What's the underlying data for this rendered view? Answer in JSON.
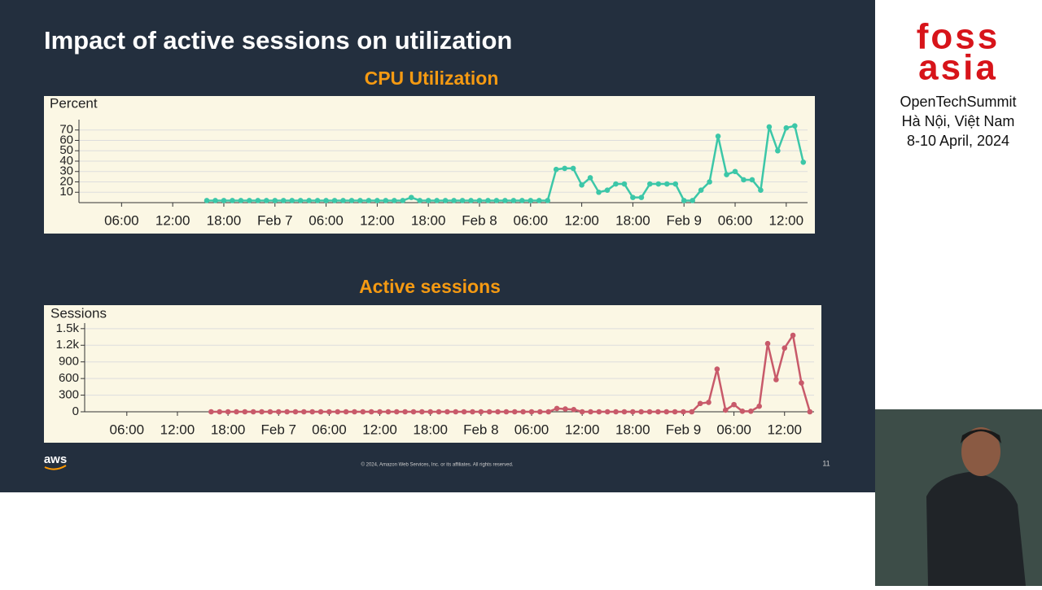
{
  "slide": {
    "title": "Impact of active sessions on utilization",
    "logo": "aws",
    "footer": "© 2024, Amazon Web Services, Inc. or its affiliates. All rights reserved.",
    "page_number": "11"
  },
  "sidebar": {
    "logo_top": "foss",
    "logo_bottom": "asia",
    "lines": [
      "OpenTechSummit",
      "Hà Nội, Việt Nam",
      "8-10 April, 2024"
    ]
  },
  "chart_data": [
    {
      "type": "line",
      "title": "CPU Utilization",
      "y_label": "Percent",
      "color": "#3cc7a8",
      "grid": true,
      "xlim": [
        1,
        86.5
      ],
      "ylim": [
        0,
        80
      ],
      "yticks": [
        10,
        20,
        30,
        40,
        50,
        60,
        70
      ],
      "xticks": [
        {
          "value": 6,
          "label": "06:00"
        },
        {
          "value": 12,
          "label": "12:00"
        },
        {
          "value": 18,
          "label": "18:00"
        },
        {
          "value": 24,
          "label": "Feb 7"
        },
        {
          "value": 30,
          "label": "06:00"
        },
        {
          "value": 36,
          "label": "12:00"
        },
        {
          "value": 42,
          "label": "18:00"
        },
        {
          "value": 48,
          "label": "Feb 8"
        },
        {
          "value": 54,
          "label": "06:00"
        },
        {
          "value": 60,
          "label": "12:00"
        },
        {
          "value": 66,
          "label": "18:00"
        },
        {
          "value": 72,
          "label": "Feb 9"
        },
        {
          "value": 78,
          "label": "06:00"
        },
        {
          "value": 84,
          "label": "12:00"
        }
      ],
      "x": [
        16,
        17,
        18,
        19,
        20,
        21,
        22,
        23,
        24,
        25,
        26,
        27,
        28,
        29,
        30,
        31,
        32,
        33,
        34,
        35,
        36,
        37,
        38,
        39,
        40,
        41,
        42,
        43,
        44,
        45,
        46,
        47,
        48,
        49,
        50,
        51,
        52,
        53,
        54,
        55,
        56,
        57,
        58,
        59,
        60,
        61,
        62,
        63,
        64,
        65,
        66,
        67,
        68,
        69,
        70,
        71,
        72,
        73,
        74,
        75,
        76,
        77,
        78,
        79,
        80,
        81,
        82,
        83,
        84,
        85,
        86
      ],
      "values": [
        2,
        2,
        2,
        2,
        2,
        2,
        2,
        2,
        2,
        2,
        2,
        2,
        2,
        2,
        2,
        2,
        2,
        2,
        2,
        2,
        2,
        2,
        2,
        2,
        5,
        2,
        2,
        2,
        2,
        2,
        2,
        2,
        2,
        2,
        2,
        2,
        2,
        2,
        2,
        2,
        2,
        32,
        33,
        33,
        17,
        24,
        10,
        12,
        18,
        18,
        5,
        5,
        18,
        18,
        18,
        18,
        2,
        2,
        12,
        20,
        64,
        27,
        30,
        22,
        22,
        12,
        73,
        50,
        72,
        74,
        39
      ]
    },
    {
      "type": "line",
      "title": "Active sessions",
      "y_label": "Sessions",
      "color": "#c85a6a",
      "grid": true,
      "xlim": [
        1,
        87.5
      ],
      "ylim": [
        0,
        1600
      ],
      "yticks": [
        0,
        300,
        600,
        900,
        {
          "value": 1200,
          "label": "1.2k"
        },
        {
          "value": 1500,
          "label": "1.5k"
        }
      ],
      "xticks": [
        {
          "value": 6,
          "label": "06:00"
        },
        {
          "value": 12,
          "label": "12:00"
        },
        {
          "value": 18,
          "label": "18:00"
        },
        {
          "value": 24,
          "label": "Feb 7"
        },
        {
          "value": 30,
          "label": "06:00"
        },
        {
          "value": 36,
          "label": "12:00"
        },
        {
          "value": 42,
          "label": "18:00"
        },
        {
          "value": 48,
          "label": "Feb 8"
        },
        {
          "value": 54,
          "label": "06:00"
        },
        {
          "value": 60,
          "label": "12:00"
        },
        {
          "value": 66,
          "label": "18:00"
        },
        {
          "value": 72,
          "label": "Feb 9"
        },
        {
          "value": 78,
          "label": "06:00"
        },
        {
          "value": 84,
          "label": "12:00"
        }
      ],
      "x": [
        16,
        17,
        18,
        19,
        20,
        21,
        22,
        23,
        24,
        25,
        26,
        27,
        28,
        29,
        30,
        31,
        32,
        33,
        34,
        35,
        36,
        37,
        38,
        39,
        40,
        41,
        42,
        43,
        44,
        45,
        46,
        47,
        48,
        49,
        50,
        51,
        52,
        53,
        54,
        55,
        56,
        57,
        58,
        59,
        60,
        61,
        62,
        63,
        64,
        65,
        66,
        67,
        68,
        69,
        70,
        71,
        72,
        73,
        74,
        75,
        76,
        77,
        78,
        79,
        80,
        81,
        82,
        83,
        84,
        85,
        86,
        87
      ],
      "values": [
        0,
        0,
        0,
        0,
        0,
        0,
        0,
        0,
        0,
        0,
        0,
        0,
        0,
        0,
        0,
        0,
        0,
        0,
        0,
        0,
        0,
        0,
        0,
        0,
        0,
        0,
        0,
        0,
        0,
        0,
        0,
        0,
        0,
        0,
        0,
        0,
        0,
        0,
        0,
        0,
        0,
        60,
        50,
        40,
        0,
        0,
        0,
        0,
        0,
        0,
        0,
        0,
        0,
        0,
        0,
        0,
        0,
        0,
        150,
        170,
        770,
        30,
        130,
        10,
        10,
        100,
        1230,
        580,
        1150,
        1380,
        520,
        0
      ]
    }
  ]
}
